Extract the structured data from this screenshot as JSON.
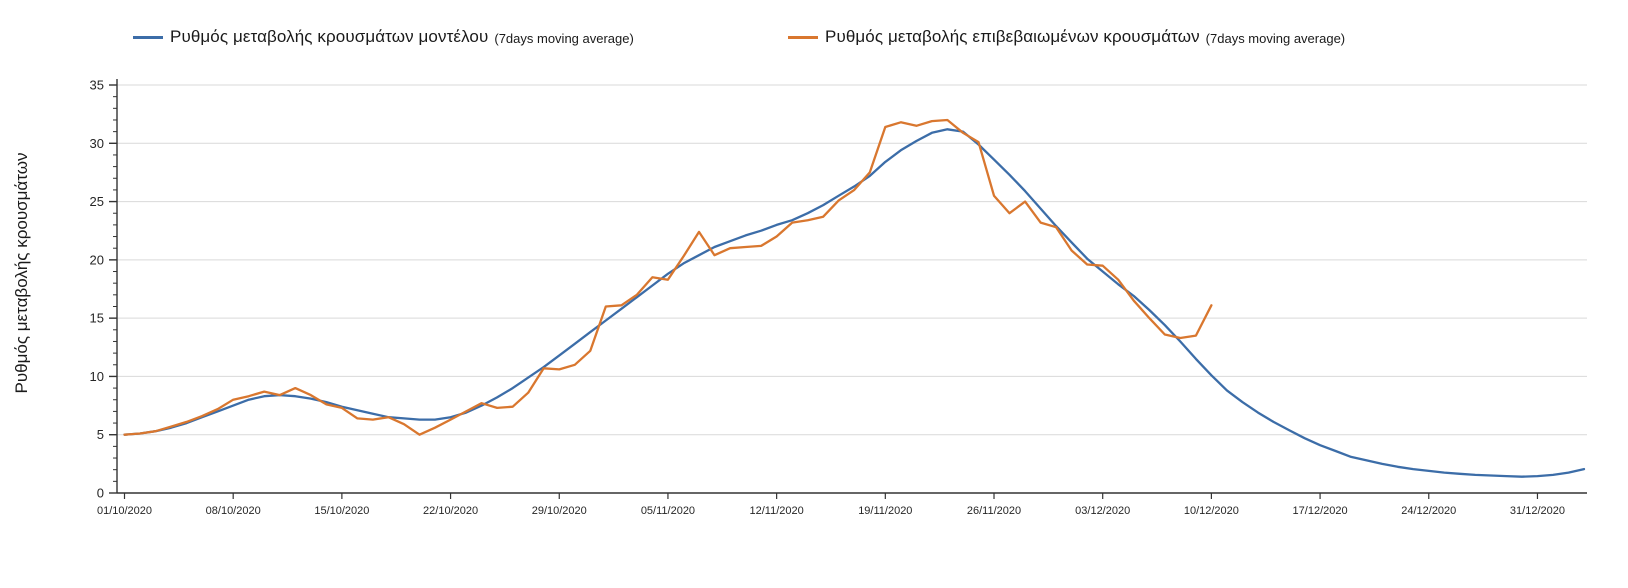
{
  "chart_data": {
    "type": "line",
    "title": "",
    "xlabel": "",
    "ylabel": "Ρυθμός μεταβολής κρουσμάτων",
    "ylim": [
      0,
      35
    ],
    "y_major_tick_step": 5,
    "y_minor_tick_step": 1,
    "grid": "horizontal-major",
    "legend_position": "top",
    "x_tick_labels": [
      "01/10/2020",
      "08/10/2020",
      "15/10/2020",
      "22/10/2020",
      "29/10/2020",
      "05/11/2020",
      "12/11/2020",
      "19/11/2020",
      "26/11/2020",
      "03/12/2020",
      "10/12/2020",
      "17/12/2020",
      "24/12/2020",
      "31/12/2020"
    ],
    "x_tick_day_offsets": [
      0,
      7,
      14,
      21,
      28,
      35,
      42,
      49,
      56,
      63,
      70,
      77,
      84,
      91
    ],
    "style": {
      "grid_color": "#d9d9d9",
      "axis_color": "#333333",
      "tick_label_color": "#262626",
      "legend_text_color": "#1a1a1a"
    },
    "series": [
      {
        "name": "Ρυθμός μεταβολής κρουσμάτων μοντέλου",
        "suffix": "(7days moving average)",
        "color": "#3c6da8",
        "start_day": 0,
        "step_days": 1,
        "values": [
          5.0,
          5.1,
          5.3,
          5.6,
          6.0,
          6.5,
          7.0,
          7.5,
          8.0,
          8.3,
          8.4,
          8.3,
          8.1,
          7.8,
          7.4,
          7.1,
          6.8,
          6.5,
          6.4,
          6.3,
          6.3,
          6.5,
          6.9,
          7.5,
          8.2,
          9.0,
          9.9,
          10.8,
          11.8,
          12.8,
          13.8,
          14.8,
          15.8,
          16.8,
          17.8,
          18.8,
          19.7,
          20.4,
          21.1,
          21.6,
          22.1,
          22.5,
          23.0,
          23.4,
          24.0,
          24.7,
          25.5,
          26.3,
          27.2,
          28.4,
          29.4,
          30.2,
          30.9,
          31.2,
          31.0,
          29.9,
          28.6,
          27.3,
          25.9,
          24.4,
          22.9,
          21.5,
          20.1,
          19.0,
          17.9,
          16.9,
          15.7,
          14.4,
          13.0,
          11.5,
          10.1,
          8.8,
          7.8,
          6.9,
          6.1,
          5.4,
          4.7,
          4.1,
          3.6,
          3.1,
          2.8,
          2.5,
          2.25,
          2.05,
          1.9,
          1.75,
          1.65,
          1.55,
          1.5,
          1.45,
          1.4,
          1.45,
          1.55,
          1.75,
          2.05
        ]
      },
      {
        "name": "Ρυθμός μεταβολής επιβεβαιωμένων κρουσμάτων",
        "suffix": "(7days moving average)",
        "color": "#d9772f",
        "start_day": 0,
        "step_days": 1,
        "values": [
          5.0,
          5.1,
          5.3,
          5.7,
          6.1,
          6.6,
          7.2,
          8.0,
          8.3,
          8.7,
          8.4,
          9.0,
          8.4,
          7.6,
          7.3,
          6.4,
          6.3,
          6.5,
          5.9,
          5.0,
          5.6,
          6.3,
          7.0,
          7.7,
          7.3,
          7.4,
          8.6,
          10.7,
          10.6,
          11.0,
          12.2,
          16.0,
          16.1,
          17.0,
          18.5,
          18.3,
          20.3,
          22.4,
          20.4,
          21.0,
          21.1,
          21.2,
          22.0,
          23.2,
          23.4,
          23.7,
          25.1,
          26.0,
          27.5,
          31.4,
          31.8,
          31.5,
          31.9,
          32.0,
          30.9,
          30.1,
          25.5,
          24.0,
          25.0,
          23.2,
          22.8,
          20.8,
          19.6,
          19.5,
          18.3,
          16.5,
          15.0,
          13.6,
          13.3,
          13.5,
          16.1
        ]
      }
    ]
  }
}
